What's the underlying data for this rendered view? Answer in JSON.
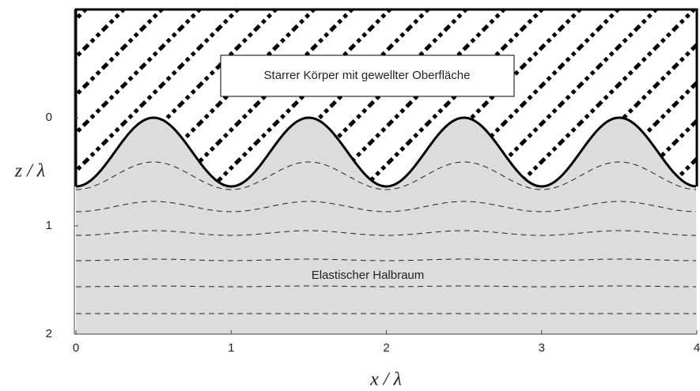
{
  "diagram": {
    "body_label": "Starrer Körper mit gewellter Oberfläche",
    "halfspace_label": "Elastischer Halbraum",
    "x_label": "x / λ",
    "y_label": "z / λ",
    "xlim": [
      0,
      4
    ],
    "ylim": [
      2,
      -1
    ],
    "xticks": [
      0,
      1,
      2,
      3,
      4
    ],
    "yticks": [
      0,
      1,
      2
    ]
  }
}
